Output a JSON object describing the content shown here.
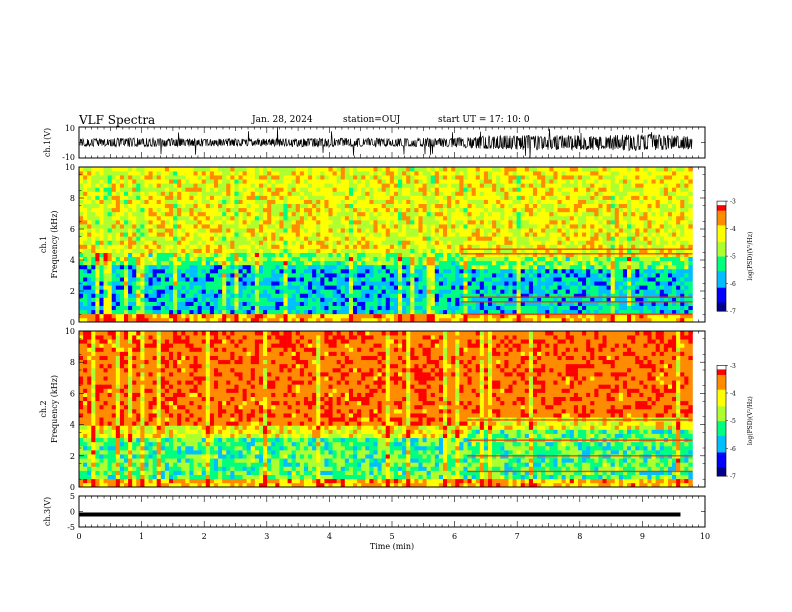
{
  "header": {
    "title": "VLF Spectra",
    "date": "Jan. 28, 2024",
    "station": "station=OUJ",
    "start": "start  UT =   17: 10: 0"
  },
  "colors": {
    "spectral": [
      "#00008b",
      "#0000ff",
      "#00bfff",
      "#00ff7f",
      "#adff2f",
      "#ffff00",
      "#ff8c00",
      "#ff0000",
      "#ffffff"
    ],
    "trace": "#000000"
  },
  "chart_data": [
    {
      "type": "line",
      "name": "ch1-waveform",
      "ylabel": "ch.1(V)",
      "ylim": [
        -10,
        10
      ],
      "yticks": [
        "10",
        "-10"
      ],
      "xlim": [
        0,
        10
      ],
      "amplitude_envelope": [
        {
          "t": 0.0,
          "v": 2.0
        },
        {
          "t": 1.0,
          "v": 2.5
        },
        {
          "t": 2.0,
          "v": 2.2
        },
        {
          "t": 3.0,
          "v": 2.0
        },
        {
          "t": 4.0,
          "v": 2.5
        },
        {
          "t": 5.0,
          "v": 2.3
        },
        {
          "t": 6.0,
          "v": 2.5
        },
        {
          "t": 6.5,
          "v": 3.5
        },
        {
          "t": 7.0,
          "v": 4.0
        },
        {
          "t": 8.0,
          "v": 4.0
        },
        {
          "t": 9.0,
          "v": 4.5
        },
        {
          "t": 9.8,
          "v": 3.5
        }
      ]
    },
    {
      "type": "heatmap",
      "name": "ch1-spectrogram",
      "ylabel": "ch.1",
      "ylabel2": "Frequency  (kHz)",
      "ylim": [
        0,
        10
      ],
      "yticks": [
        "0",
        "2",
        "4",
        "6",
        "8",
        "10"
      ],
      "xlim": [
        0,
        10
      ],
      "data_end_min": 9.8,
      "colorbar": {
        "label": "log(PSD)(V²/Hz)",
        "range": [
          -7,
          -3
        ],
        "ticks": [
          "-3",
          "-4",
          "-5",
          "-6",
          "-7"
        ]
      },
      "regime_change_min": 6.1,
      "low_band_top_khz": {
        "before": 4.5,
        "after": 4.3
      },
      "emission_lines_khz_after_change": [
        0.5,
        1.3,
        1.6,
        4.4,
        4.7
      ]
    },
    {
      "type": "heatmap",
      "name": "ch2-spectrogram",
      "ylabel": "ch.2",
      "ylabel2": "Frequency  (kHz)",
      "ylim": [
        0,
        10
      ],
      "yticks": [
        "0",
        "2",
        "4",
        "6",
        "8",
        "10"
      ],
      "xlim": [
        0,
        10
      ],
      "data_end_min": 9.8,
      "colorbar": {
        "label": "log(PSD)(V²/Hz)",
        "range": [
          -7,
          -3
        ],
        "ticks": [
          "-3",
          "-4",
          "-5",
          "-6",
          "-7"
        ]
      },
      "regime_change_min": 6.2,
      "low_band_top_khz": {
        "before": 4.0,
        "after": 4.5
      },
      "emission_lines_khz_after_change": [
        1.0,
        2.0,
        3.0,
        4.3
      ]
    },
    {
      "type": "line",
      "name": "ch3-waveform",
      "ylabel": "ch.3(V)",
      "ylim": [
        -5,
        5
      ],
      "yticks": [
        "5",
        "0",
        "-5"
      ],
      "xlim": [
        0,
        10
      ],
      "constant_value": 0
    }
  ],
  "xaxis": {
    "label": "Time  (min)",
    "ticks": [
      "0",
      "1",
      "2",
      "3",
      "4",
      "5",
      "6",
      "7",
      "8",
      "9",
      "10"
    ]
  }
}
